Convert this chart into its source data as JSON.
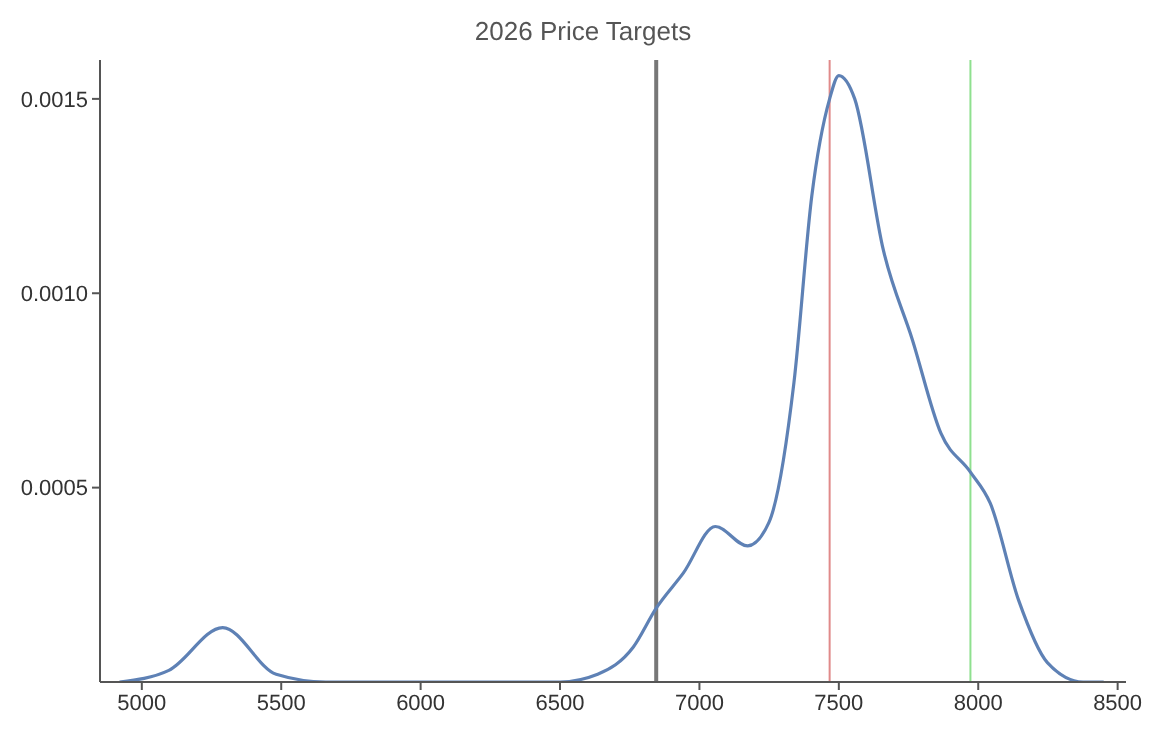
{
  "chart_data": {
    "type": "line",
    "title": "2026 Price Targets",
    "x": [
      4920,
      5097,
      5290,
      5482,
      5660,
      6500,
      6635,
      6763,
      6845,
      6942,
      7057,
      7173,
      7249,
      7339,
      7403,
      7467,
      7500,
      7557,
      7660,
      7764,
      7866,
      7972,
      8043,
      8145,
      8248,
      8376,
      8450
    ],
    "series": [
      {
        "color": "#5e81b5",
        "values": [
          0,
          3e-05,
          0.00014,
          2e-05,
          0,
          0,
          2e-05,
          9e-05,
          0.00019,
          0.00028,
          0.0004,
          0.00035,
          0.00041,
          0.00077,
          0.00125,
          0.0015,
          0.00156,
          0.0015,
          0.00111,
          0.00088,
          0.00064,
          0.00054,
          0.00046,
          0.00021,
          5e-05,
          0,
          0
        ]
      }
    ],
    "xlim": [
      4850,
      8530
    ],
    "ylim": [
      0,
      0.0016
    ],
    "xticks": [
      5000,
      5500,
      6000,
      6500,
      7000,
      7500,
      8000,
      8500
    ],
    "yticks": [
      {
        "value": 0.0005,
        "label": "0.0005"
      },
      {
        "value": 0.001,
        "label": "0.0010"
      },
      {
        "value": 0.0015,
        "label": "0.0015"
      }
    ],
    "ref_lines": [
      {
        "axis": "x",
        "value": 6845,
        "color": "#777777"
      },
      {
        "axis": "x",
        "value": 7467,
        "color": "#e08a8a"
      },
      {
        "axis": "x",
        "value": 7972,
        "color": "#8fe08f"
      }
    ],
    "marker": "none",
    "line_style": "solid"
  }
}
